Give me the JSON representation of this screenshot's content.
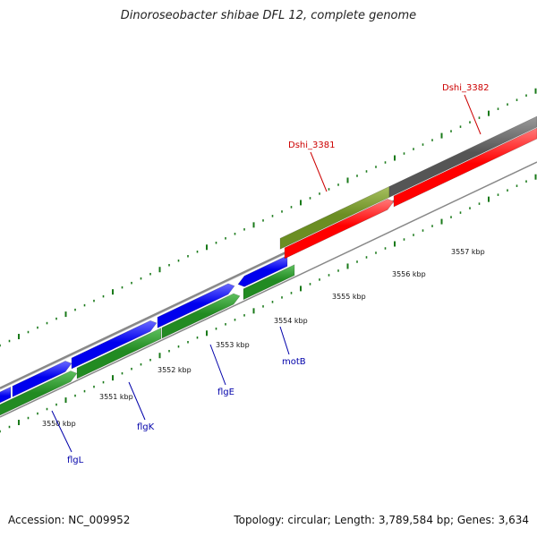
{
  "title": "Dinoroseobacter shibae DFL 12, complete genome",
  "footer": {
    "accession": "Accession: NC_009952",
    "summary": "Topology: circular; Length: 3,789,584 bp; Genes: 3,634"
  },
  "colors": {
    "forward_cds": "#0000ee",
    "reverse_cds": "#228b22",
    "red_cds": "#ff0000",
    "olive_cds": "#6b8e23",
    "dark_grey_cds": "#555555",
    "backbone": "#888888",
    "tick": "#1a7a1a",
    "gene_label_blue": "#0000aa",
    "gene_label_red": "#cc0000"
  },
  "scale_labels": [
    "3550 kbp",
    "3551 kbp",
    "3552 kbp",
    "3553 kbp",
    "3554 kbp",
    "3555 kbp",
    "3556 kbp",
    "3557 kbp"
  ],
  "gene_labels": [
    {
      "name": "flgL",
      "color": "blue"
    },
    {
      "name": "flgK",
      "color": "blue"
    },
    {
      "name": "flgE",
      "color": "blue"
    },
    {
      "name": "motB",
      "color": "blue"
    },
    {
      "name": "Dshi_3381",
      "color": "red"
    },
    {
      "name": "Dshi_3382",
      "color": "red"
    }
  ]
}
